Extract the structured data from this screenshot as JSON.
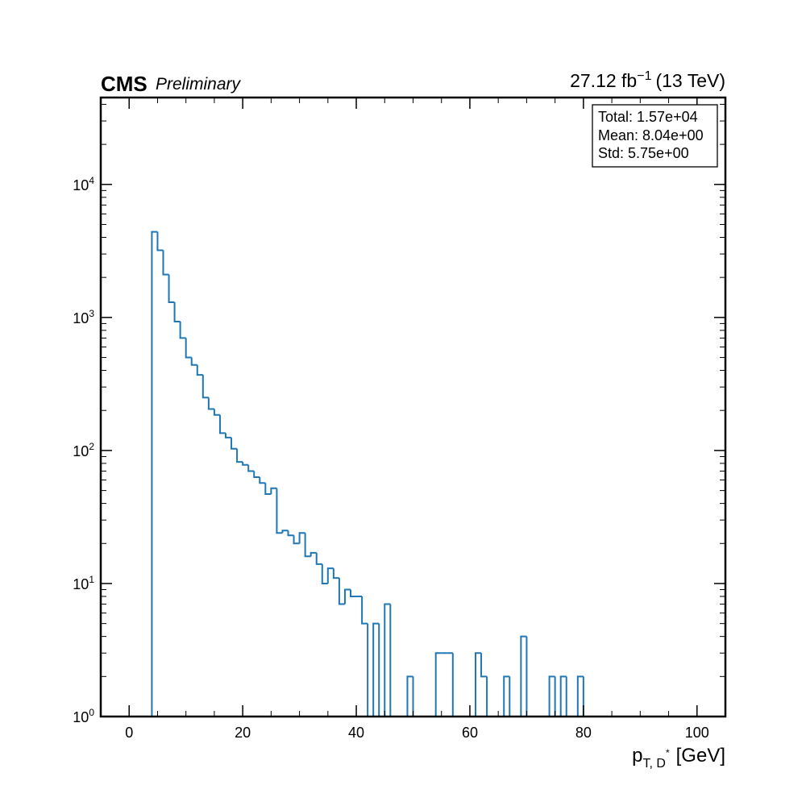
{
  "header": {
    "experiment": "CMS",
    "status": "Preliminary",
    "lumi_value": "27.12 fb",
    "lumi_exp": "−1",
    "lumi_energy": "(13 TeV)"
  },
  "stats_box": {
    "total": "Total: 1.57e+04",
    "mean": "Mean: 8.04e+00",
    "std": "Std: 5.75e+00"
  },
  "colors": {
    "histogram": "#1f77b4",
    "axes": "#000000"
  },
  "chart_data": {
    "type": "histogram",
    "histtype": "step",
    "xlabel": {
      "main": "p",
      "sub": "T, D",
      "sup": "*",
      "unit": "[GeV]"
    },
    "ylabel": "",
    "xlim": [
      -5,
      105
    ],
    "ylim": [
      1,
      45000
    ],
    "yscale": "log",
    "grid": false,
    "x_ticks": [
      0,
      20,
      40,
      60,
      80,
      100
    ],
    "y_ticks": [
      {
        "base": "10",
        "exp": "0",
        "value": 1
      },
      {
        "base": "10",
        "exp": "1",
        "value": 10
      },
      {
        "base": "10",
        "exp": "2",
        "value": 100
      },
      {
        "base": "10",
        "exp": "3",
        "value": 1000
      },
      {
        "base": "10",
        "exp": "4",
        "value": 10000
      }
    ],
    "bin_edges_start": 4,
    "bin_width": 1,
    "counts": [
      4400,
      3200,
      2100,
      1300,
      930,
      700,
      500,
      440,
      370,
      250,
      205,
      185,
      135,
      125,
      103,
      82,
      78,
      70,
      63,
      57,
      47,
      52,
      24,
      25,
      23,
      20,
      24,
      16,
      17,
      14,
      10,
      13,
      11,
      7,
      9,
      8,
      8,
      5,
      0,
      5,
      0,
      7,
      0,
      0,
      0,
      2,
      0,
      0,
      0,
      0,
      3,
      3,
      3,
      0,
      0,
      0,
      0,
      3,
      2,
      0,
      0,
      0,
      2,
      0,
      0,
      4,
      0,
      0,
      0,
      0,
      2,
      0,
      2,
      0,
      0,
      2,
      0
    ]
  }
}
